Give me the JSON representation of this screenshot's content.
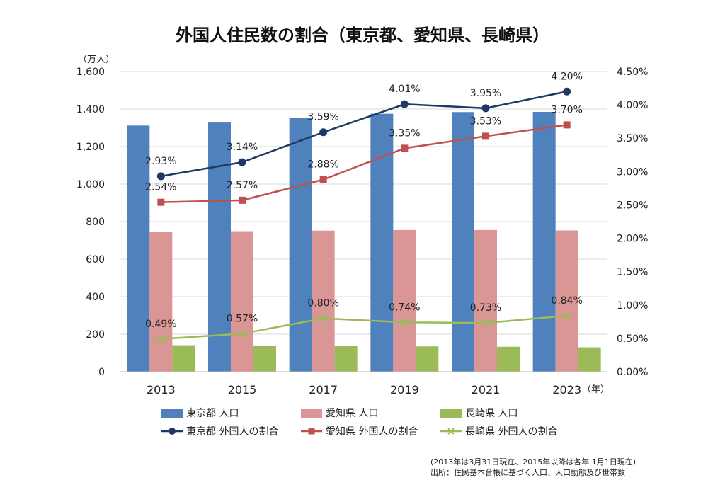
{
  "chart_data": {
    "type": "bar",
    "title": "外国人住民数の割合（東京都、愛知県、長崎県）",
    "y_unit_label": "（万人）",
    "x_unit_label": "（年）",
    "categories": [
      "2013",
      "2015",
      "2017",
      "2019",
      "2021",
      "2023"
    ],
    "ylim": [
      0,
      1600
    ],
    "y_ticks": [
      "0",
      "200",
      "400",
      "600",
      "800",
      "1,000",
      "1,200",
      "1,400",
      "1,600"
    ],
    "y2lim": [
      0,
      4.5
    ],
    "y2_ticks": [
      "0.00%",
      "0.50%",
      "1.00%",
      "1.50%",
      "2.00%",
      "2.50%",
      "3.00%",
      "3.50%",
      "4.00%",
      "4.50%"
    ],
    "bar_series": [
      {
        "name": "東京都 人口",
        "color": "#4f81bd",
        "values": [
          1312,
          1328,
          1354,
          1375,
          1384,
          1385
        ]
      },
      {
        "name": "愛知県 人口",
        "color": "#d99694",
        "values": [
          747,
          749,
          752,
          755,
          755,
          753
        ]
      },
      {
        "name": "長崎県 人口",
        "color": "#9bbb59",
        "values": [
          141,
          140,
          138,
          135,
          133,
          130
        ]
      }
    ],
    "line_series": [
      {
        "name": "東京都 外国人の割合",
        "color": "#1f3864",
        "marker": "circle",
        "values": [
          2.93,
          3.14,
          3.59,
          4.01,
          3.95,
          4.2
        ],
        "labels": [
          "2.93%",
          "3.14%",
          "3.59%",
          "4.01%",
          "3.95%",
          "4.20%"
        ]
      },
      {
        "name": "愛知県 外国人の割合",
        "color": "#c0504d",
        "marker": "square",
        "values": [
          2.54,
          2.57,
          2.88,
          3.35,
          3.53,
          3.7
        ],
        "labels": [
          "2.54%",
          "2.57%",
          "2.88%",
          "3.35%",
          "3.53%",
          "3.70%"
        ]
      },
      {
        "name": "長崎県 外国人の割合",
        "color": "#9bbb59",
        "marker": "x",
        "values": [
          0.49,
          0.57,
          0.8,
          0.74,
          0.73,
          0.84
        ],
        "labels": [
          "0.49%",
          "0.57%",
          "0.80%",
          "0.74%",
          "0.73%",
          "0.84%"
        ]
      }
    ],
    "grid": true,
    "legend_position": "bottom",
    "notes": [
      "(2013年は3月31日現在、2015年以降は各年 1月1日現在)",
      "出所：住民基本台帳に基づく人口、人口動態及び世帯数"
    ]
  }
}
